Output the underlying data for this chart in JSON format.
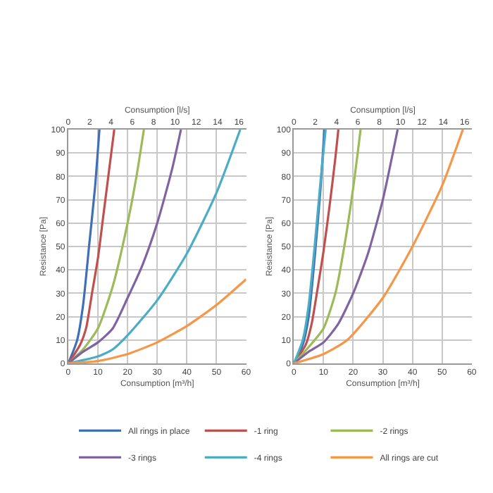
{
  "chart_data": [
    {
      "type": "line",
      "xlabel": "Consumption [m³/h]",
      "x2label": "Consumption [l/s]",
      "ylabel": "Resistance [Pa]",
      "xlim": [
        0,
        60
      ],
      "xticks": [
        0,
        10,
        20,
        30,
        40,
        50,
        60
      ],
      "x2lim": [
        0,
        16.67
      ],
      "x2ticks": [
        0,
        2,
        4,
        6,
        8,
        10,
        12,
        14,
        16
      ],
      "ylim": [
        0,
        100
      ],
      "yticks": [
        0,
        10,
        20,
        30,
        40,
        50,
        60,
        70,
        80,
        90,
        100
      ],
      "grid": true,
      "legend": "bottom",
      "marker": "none",
      "line_style": "solid",
      "series": [
        {
          "name": "All rings in place",
          "color": "#3f6fb6",
          "x": [
            0,
            3,
            5,
            7,
            9,
            10.5
          ],
          "values": [
            0,
            10,
            25,
            50,
            75,
            100
          ]
        },
        {
          "name": "-1 ring",
          "color": "#c0504d",
          "x": [
            0,
            4,
            6,
            8,
            10,
            12,
            14,
            15.5
          ],
          "values": [
            0,
            8,
            15,
            30,
            45,
            65,
            85,
            100
          ]
        },
        {
          "name": "-2 rings",
          "color": "#9bbb59",
          "x": [
            0,
            5,
            10,
            15,
            20,
            23,
            25.5
          ],
          "values": [
            0,
            6,
            15,
            33,
            60,
            80,
            100
          ]
        },
        {
          "name": "-3 rings",
          "color": "#8064a2",
          "x": [
            0,
            5,
            10,
            15,
            20,
            25,
            30,
            35,
            38
          ],
          "values": [
            0,
            5,
            9,
            15,
            28,
            42,
            60,
            83,
            100
          ]
        },
        {
          "name": "-4 rings",
          "color": "#4bacc6",
          "x": [
            0,
            10,
            15,
            20,
            30,
            40,
            50,
            58
          ],
          "values": [
            0,
            3,
            6,
            12,
            27,
            47,
            73,
            100
          ]
        },
        {
          "name": "All rings are cut",
          "color": "#f79646",
          "x": [
            0,
            10,
            20,
            30,
            40,
            50,
            60
          ],
          "values": [
            0,
            1,
            4,
            9,
            16,
            25,
            36
          ]
        }
      ]
    },
    {
      "type": "line",
      "xlabel": "Consumption [m³/h]",
      "x2label": "Consumption [l/s]",
      "ylabel": "Resistance [Pa]",
      "xlim": [
        0,
        60
      ],
      "xticks": [
        0,
        10,
        20,
        30,
        40,
        50,
        60
      ],
      "x2lim": [
        0,
        16.67
      ],
      "x2ticks": [
        0,
        2,
        4,
        6,
        8,
        10,
        12,
        14,
        16
      ],
      "ylim": [
        0,
        100
      ],
      "yticks": [
        0,
        10,
        20,
        30,
        40,
        50,
        60,
        70,
        80,
        90,
        100
      ],
      "grid": true,
      "marker": "none",
      "line_style": "solid",
      "series": [
        {
          "color": "#3f6fb6",
          "x": [
            0,
            3,
            5,
            7,
            9,
            10.3
          ],
          "values": [
            0,
            8,
            20,
            45,
            75,
            100
          ]
        },
        {
          "color": "#c0504d",
          "x": [
            0,
            4,
            6,
            8,
            10,
            12,
            14,
            15
          ],
          "values": [
            0,
            8,
            17,
            32,
            48,
            67,
            88,
            100
          ]
        },
        {
          "color": "#9bbb59",
          "x": [
            0,
            5,
            10,
            14,
            17,
            20,
            22.5
          ],
          "values": [
            0,
            7,
            15,
            30,
            50,
            75,
            100
          ]
        },
        {
          "color": "#8064a2",
          "x": [
            0,
            5,
            10,
            15,
            20,
            25,
            30,
            35
          ],
          "values": [
            0,
            5,
            9,
            17,
            30,
            47,
            70,
            100
          ]
        },
        {
          "color": "#4bacc6",
          "x": [
            0,
            3,
            5,
            7,
            9,
            10.7
          ],
          "values": [
            0,
            10,
            25,
            50,
            78,
            100
          ]
        },
        {
          "color": "#f79646",
          "x": [
            0,
            10,
            18,
            30,
            40,
            50,
            57
          ],
          "values": [
            0,
            4,
            10,
            28,
            50,
            76,
            100
          ]
        }
      ]
    }
  ]
}
